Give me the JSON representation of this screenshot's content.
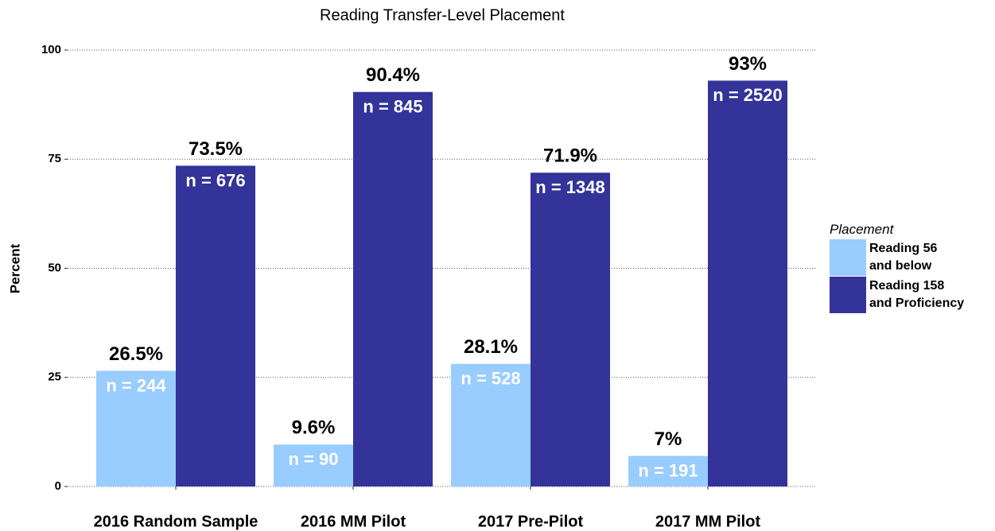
{
  "chart_data": {
    "type": "bar",
    "title": "Reading Transfer-Level Placement",
    "y_label": "Percent",
    "categories": [
      "2016 Random Sample",
      "2016 MM Pilot",
      "2017 Pre-Pilot",
      "2017 MM Pilot"
    ],
    "legend_title": "Placement",
    "legend_position": "right",
    "series": [
      {
        "name": "Reading 56\nand below",
        "color": "#99ccff",
        "values": [
          26.5,
          9.6,
          28.1,
          7
        ],
        "value_labels": [
          "26.5%",
          "9.6%",
          "28.1%",
          "7%"
        ],
        "count_labels": [
          "n = 244",
          "n = 90",
          "n = 528",
          "n = 191"
        ]
      },
      {
        "name": "Reading 158\nand Proficiency",
        "color": "#333399",
        "values": [
          73.5,
          90.4,
          71.9,
          93
        ],
        "value_labels": [
          "73.5%",
          "90.4%",
          "71.9%",
          "93%"
        ],
        "count_labels": [
          "n = 676",
          "n = 845",
          "n = 1348",
          "n = 2520"
        ]
      }
    ],
    "ylim": [
      0,
      100
    ],
    "yticks": [
      0,
      25,
      50,
      75,
      100
    ],
    "grid": true
  }
}
